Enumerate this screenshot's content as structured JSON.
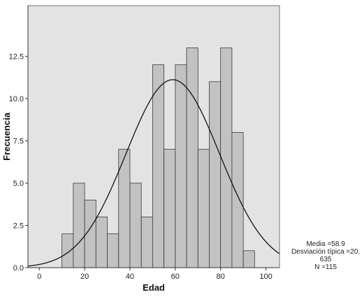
{
  "chart_data": {
    "type": "bar",
    "subtype": "histogram-with-normal-curve",
    "xlabel": "Edad",
    "ylabel": "Frecuencia",
    "xlim": [
      -5,
      106
    ],
    "ylim": [
      0,
      15.5
    ],
    "xticks": [
      "0",
      "20",
      "40",
      "60",
      "80",
      "100"
    ],
    "yticks": [
      "0.0",
      "2.5",
      "5.0",
      "7.5",
      "10.0",
      "12.5"
    ],
    "bin_width": 5,
    "bins": [
      {
        "start": 10,
        "end": 15,
        "value": 2
      },
      {
        "start": 15,
        "end": 20,
        "value": 5
      },
      {
        "start": 20,
        "end": 25,
        "value": 4
      },
      {
        "start": 25,
        "end": 30,
        "value": 3
      },
      {
        "start": 30,
        "end": 35,
        "value": 2
      },
      {
        "start": 35,
        "end": 40,
        "value": 7
      },
      {
        "start": 40,
        "end": 45,
        "value": 5
      },
      {
        "start": 45,
        "end": 50,
        "value": 3
      },
      {
        "start": 50,
        "end": 55,
        "value": 12
      },
      {
        "start": 55,
        "end": 60,
        "value": 7
      },
      {
        "start": 60,
        "end": 65,
        "value": 12
      },
      {
        "start": 65,
        "end": 70,
        "value": 13
      },
      {
        "start": 70,
        "end": 75,
        "value": 7
      },
      {
        "start": 75,
        "end": 80,
        "value": 11
      },
      {
        "start": 80,
        "end": 85,
        "value": 13
      },
      {
        "start": 85,
        "end": 90,
        "value": 8
      },
      {
        "start": 90,
        "end": 95,
        "value": 1
      }
    ],
    "normal_curve": {
      "mean": 58.9,
      "sd": 20.635,
      "n": 115
    },
    "grid": false,
    "colors": {
      "plot_background": "#e3e3e3",
      "bar_fill": "#c2c2c2",
      "bar_stroke": "#3a3a3a",
      "curve": "#111111"
    }
  },
  "stats_legend": {
    "line1": "Media =58.9",
    "line2": "Desviación típica =20.",
    "line3": "635",
    "line4": "N =115"
  }
}
